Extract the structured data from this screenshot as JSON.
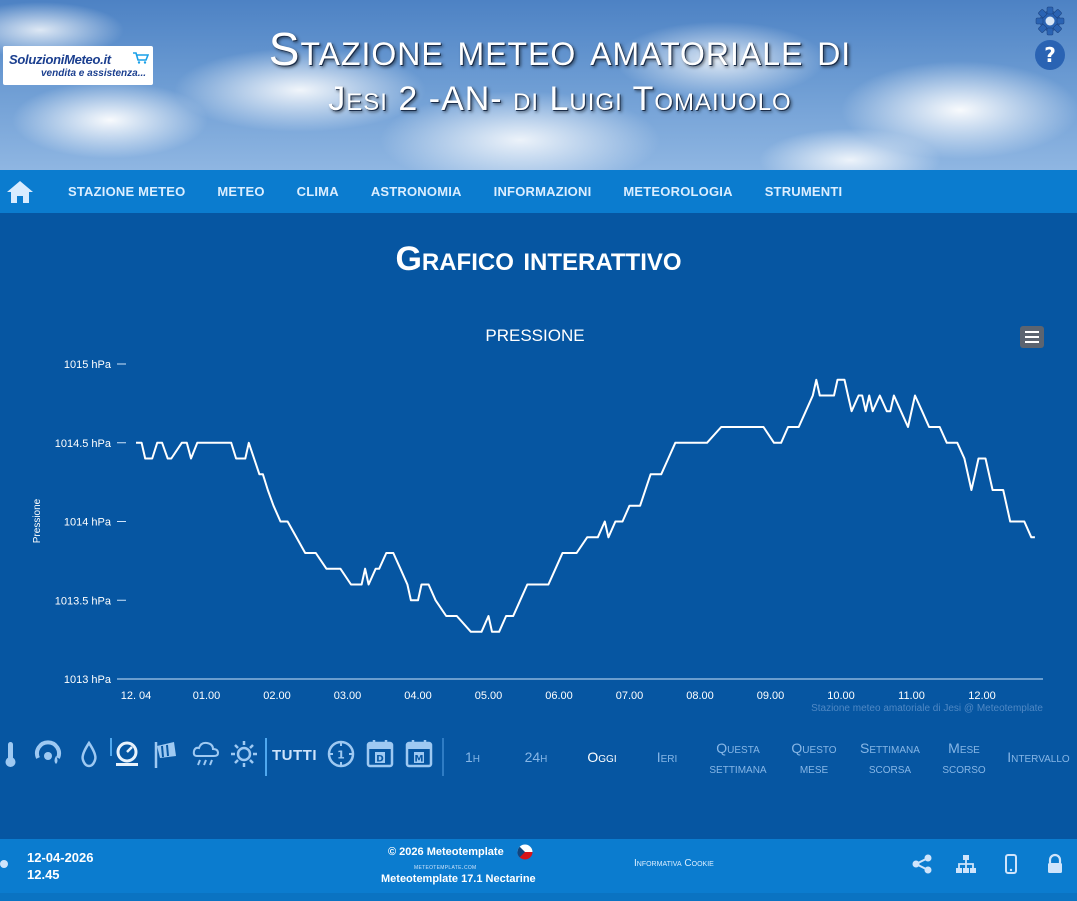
{
  "header": {
    "logo_line1": "SoluzioniMeteo.it",
    "logo_line2": "vendita e assistenza...",
    "title_line1": "Stazione meteo amatoriale di",
    "title_line2": "Jesi 2 -AN- di Luigi Tomaiuolo",
    "settings_icon": "gear-icon",
    "help_icon": "question-icon"
  },
  "nav": {
    "home_icon": "home-icon",
    "items": [
      "STAZIONE METEO",
      "METEO",
      "CLIMA",
      "ASTRONOMIA",
      "INFORMAZIONI",
      "METEOROLOGIA",
      "STRUMENTI"
    ]
  },
  "page": {
    "title": "Grafico interattivo"
  },
  "chart_data": {
    "type": "line",
    "title": "PRESSIONE",
    "ylabel": "Pressione",
    "xlabel": "",
    "ylim": [
      1013,
      1015
    ],
    "y_ticks": [
      "1015 hPa",
      "1014.5 hPa",
      "1014 hPa",
      "1013.5 hPa",
      "1013 hPa"
    ],
    "y_tick_values": [
      1015,
      1014.5,
      1014,
      1013.5,
      1013
    ],
    "x_ticks": [
      "12. 04",
      "01.00",
      "02.00",
      "03.00",
      "04.00",
      "05.00",
      "06.00",
      "07.00",
      "08.00",
      "09.00",
      "10.00",
      "11.00",
      "12.00"
    ],
    "x_range_hours": [
      0,
      13.0
    ],
    "credits": "Stazione meteo amatoriale di Jesi @ Meteotemplate",
    "series": [
      {
        "color": "#ffffff",
        "x": [
          0.0,
          0.08,
          0.13,
          0.23,
          0.3,
          0.37,
          0.45,
          0.5,
          0.65,
          0.72,
          0.78,
          0.87,
          1.0,
          1.15,
          1.35,
          1.42,
          1.55,
          1.6,
          1.75,
          1.8,
          1.87,
          1.95,
          2.05,
          2.15,
          2.4,
          2.55,
          2.7,
          2.9,
          3.05,
          3.2,
          3.25,
          3.3,
          3.4,
          3.45,
          3.55,
          3.65,
          3.75,
          3.85,
          3.9,
          4.0,
          4.05,
          4.15,
          4.25,
          4.4,
          4.55,
          4.75,
          4.9,
          5.0,
          5.05,
          5.15,
          5.25,
          5.35,
          5.45,
          5.55,
          5.7,
          5.85,
          5.95,
          6.05,
          6.25,
          6.4,
          6.55,
          6.65,
          6.7,
          6.8,
          6.9,
          7.0,
          7.15,
          7.3,
          7.45,
          7.55,
          7.65,
          7.8,
          7.95,
          8.1,
          8.3,
          8.5,
          8.7,
          8.9,
          9.05,
          9.15,
          9.25,
          9.4,
          9.5,
          9.6,
          9.65,
          9.7,
          9.8,
          9.9,
          9.95,
          10.05,
          10.1,
          10.15,
          10.25,
          10.3,
          10.35,
          10.4,
          10.45,
          10.55,
          10.65,
          10.7,
          10.75,
          10.85,
          10.95,
          11.05,
          11.15,
          11.25,
          11.4,
          11.5,
          11.65,
          11.75,
          11.85,
          11.9,
          11.95,
          12.05,
          12.15,
          12.3,
          12.4,
          12.45,
          12.6,
          12.7,
          12.75
        ],
        "values": [
          1014.5,
          1014.5,
          1014.4,
          1014.4,
          1014.5,
          1014.5,
          1014.4,
          1014.4,
          1014.5,
          1014.5,
          1014.4,
          1014.5,
          1014.5,
          1014.5,
          1014.5,
          1014.4,
          1014.4,
          1014.5,
          1014.3,
          1014.3,
          1014.2,
          1014.1,
          1014.0,
          1014.0,
          1013.8,
          1013.8,
          1013.7,
          1013.7,
          1013.6,
          1013.6,
          1013.7,
          1013.6,
          1013.7,
          1013.7,
          1013.8,
          1013.8,
          1013.7,
          1013.6,
          1013.5,
          1013.5,
          1013.6,
          1013.6,
          1013.5,
          1013.4,
          1013.4,
          1013.3,
          1013.3,
          1013.4,
          1013.3,
          1013.3,
          1013.4,
          1013.4,
          1013.5,
          1013.6,
          1013.6,
          1013.6,
          1013.7,
          1013.8,
          1013.8,
          1013.9,
          1013.9,
          1014.0,
          1013.9,
          1014.0,
          1014.0,
          1014.1,
          1014.1,
          1014.3,
          1014.3,
          1014.4,
          1014.5,
          1014.5,
          1014.5,
          1014.5,
          1014.6,
          1014.6,
          1014.6,
          1014.6,
          1014.5,
          1014.5,
          1014.6,
          1014.6,
          1014.7,
          1014.8,
          1014.9,
          1014.8,
          1014.8,
          1014.8,
          1014.9,
          1014.9,
          1014.8,
          1014.7,
          1014.8,
          1014.8,
          1014.7,
          1014.8,
          1014.7,
          1014.8,
          1014.7,
          1014.7,
          1014.8,
          1014.7,
          1014.6,
          1014.8,
          1014.7,
          1014.6,
          1014.6,
          1014.5,
          1014.5,
          1014.4,
          1014.2,
          1014.3,
          1014.4,
          1014.4,
          1014.2,
          1014.2,
          1014.0,
          1014.0,
          1014.0,
          1013.9,
          1013.9
        ]
      }
    ],
    "grid": false,
    "legend": "none"
  },
  "toolbar": {
    "variable_icons": [
      "thermometer-icon",
      "humidity-gauge-icon",
      "raindrop-icon",
      "barometer-icon",
      "wind-sock-icon",
      "rain-cloud-icon",
      "sun-icon"
    ],
    "tutti": "TUTTI",
    "period_icons": [
      "clock-icon",
      "day-calendar-icon",
      "month-calendar-icon"
    ],
    "day_badge": "D",
    "month_badge": "M",
    "clock_badge": "1",
    "ranges": [
      {
        "l1": "1h",
        "l2": ""
      },
      {
        "l1": "24h",
        "l2": ""
      },
      {
        "l1": "Oggi",
        "l2": ""
      },
      {
        "l1": "Ieri",
        "l2": ""
      },
      {
        "l1": "Questa",
        "l2": "settimana"
      },
      {
        "l1": "Questo",
        "l2": "mese"
      },
      {
        "l1": "Settimana",
        "l2": "scorsa"
      },
      {
        "l1": "Mese",
        "l2": "scorso"
      },
      {
        "l1": "Intervallo",
        "l2": ""
      }
    ],
    "active_range": "Oggi"
  },
  "footer": {
    "date": "12-04-2026",
    "time": "12.45",
    "copyright": "© 2026  Meteotemplate",
    "site": "meteotemplate.com",
    "version": "Meteotemplate 17.1 Nectarine",
    "cookie": "Informativa Cookie",
    "icons": [
      "share-icon",
      "sitemap-icon",
      "mobile-icon",
      "lock-icon"
    ]
  },
  "colors": {
    "background": "#0656a2",
    "nav": "#0b7ccf",
    "line": "#ffffff",
    "inactive_range": "#86b6e6"
  }
}
